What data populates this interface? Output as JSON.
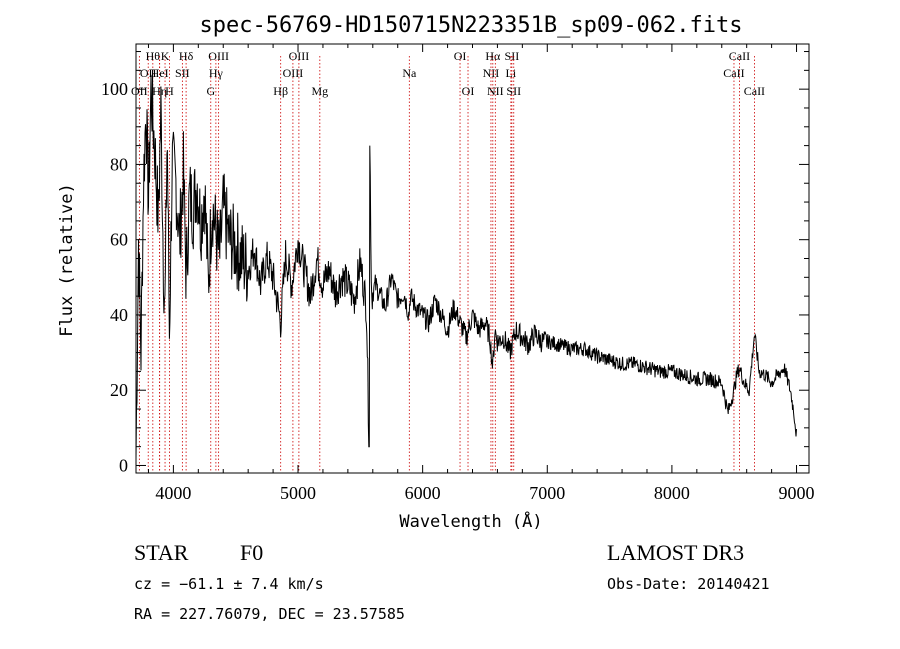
{
  "chart_data": {
    "type": "line",
    "title": "spec-56769-HD150715N223351B_sp09-062.fits",
    "xlabel": "Wavelength (Å)",
    "ylabel": "Flux (relative)",
    "xlim": [
      3700,
      9100
    ],
    "ylim": [
      -2,
      112
    ],
    "xticks": [
      4000,
      5000,
      6000,
      7000,
      8000,
      9000
    ],
    "yticks": [
      0,
      20,
      40,
      60,
      80,
      100
    ],
    "series": [
      {
        "name": "flux",
        "x": [
          3700,
          3720,
          3740,
          3760,
          3780,
          3800,
          3820,
          3850,
          3880,
          3900,
          3920,
          3933,
          3950,
          3968,
          3990,
          4020,
          4050,
          4080,
          4102,
          4130,
          4160,
          4190,
          4220,
          4250,
          4280,
          4310,
          4340,
          4370,
          4400,
          4450,
          4500,
          4550,
          4600,
          4650,
          4700,
          4750,
          4800,
          4861,
          4900,
          4950,
          5000,
          5050,
          5100,
          5150,
          5200,
          5250,
          5300,
          5350,
          5400,
          5450,
          5500,
          5550,
          5570,
          5577,
          5590,
          5620,
          5650,
          5700,
          5750,
          5800,
          5850,
          5890,
          5900,
          5950,
          6000,
          6050,
          6100,
          6150,
          6200,
          6250,
          6300,
          6350,
          6400,
          6450,
          6500,
          6540,
          6563,
          6580,
          6600,
          6650,
          6700,
          6750,
          6800,
          6850,
          6900,
          6950,
          7000,
          7100,
          7200,
          7300,
          7400,
          7500,
          7600,
          7700,
          7800,
          7900,
          8000,
          8100,
          8200,
          8300,
          8400,
          8450,
          8498,
          8520,
          8542,
          8580,
          8620,
          8662,
          8700,
          8750,
          8800,
          8850,
          8900,
          8950,
          8980,
          9000
        ],
        "y": [
          2,
          60,
          30,
          75,
          95,
          70,
          100,
          85,
          65,
          95,
          55,
          40,
          90,
          35,
          80,
          75,
          60,
          78,
          50,
          72,
          68,
          76,
          64,
          74,
          48,
          70,
          62,
          55,
          68,
          60,
          58,
          55,
          52,
          58,
          48,
          55,
          50,
          38,
          56,
          48,
          60,
          52,
          45,
          55,
          48,
          52,
          46,
          50,
          48,
          44,
          54,
          42,
          5,
          85,
          45,
          48,
          46,
          42,
          50,
          44,
          46,
          40,
          45,
          42,
          40,
          38,
          44,
          40,
          36,
          42,
          38,
          34,
          40,
          36,
          38,
          34,
          26,
          36,
          33,
          34,
          30,
          36,
          34,
          32,
          35,
          33,
          33,
          32,
          31,
          31,
          29,
          28,
          27,
          27,
          26,
          25,
          25,
          24,
          23,
          23,
          22,
          14,
          20,
          24,
          26,
          22,
          20,
          35,
          25,
          24,
          22,
          24,
          26,
          20,
          14,
          8
        ]
      }
    ],
    "lines": [
      {
        "wl": 3727,
        "row": 2,
        "label": "OII"
      },
      {
        "wl": 3798,
        "row": 1,
        "label": "OII"
      },
      {
        "wl": 3835,
        "row": 0,
        "label": "Hθ"
      },
      {
        "wl": 3889,
        "row": 2,
        "label": "Hη"
      },
      {
        "wl": 3890,
        "row": 1,
        "label": "HeI"
      },
      {
        "wl": 3933,
        "row": 0,
        "label": "K"
      },
      {
        "wl": 3968,
        "row": 2,
        "label": "H"
      },
      {
        "wl": 4072,
        "row": 1,
        "label": "SII"
      },
      {
        "wl": 4102,
        "row": 0,
        "label": "Hδ"
      },
      {
        "wl": 4300,
        "row": 2,
        "label": "G"
      },
      {
        "wl": 4341,
        "row": 1,
        "label": "Hγ"
      },
      {
        "wl": 4363,
        "row": 0,
        "label": "OIII"
      },
      {
        "wl": 4861,
        "row": 2,
        "label": "Hβ"
      },
      {
        "wl": 4959,
        "row": 1,
        "label": "OIII"
      },
      {
        "wl": 5007,
        "row": 0,
        "label": "OIII"
      },
      {
        "wl": 5175,
        "row": 2,
        "label": "Mg"
      },
      {
        "wl": 5893,
        "row": 1,
        "label": "Na"
      },
      {
        "wl": 6300,
        "row": 0,
        "label": "OI"
      },
      {
        "wl": 6364,
        "row": 2,
        "label": "OI"
      },
      {
        "wl": 6548,
        "row": 1,
        "label": "NII"
      },
      {
        "wl": 6563,
        "row": 0,
        "label": "Hα"
      },
      {
        "wl": 6583,
        "row": 2,
        "label": "NII"
      },
      {
        "wl": 6708,
        "row": 1,
        "label": "Li"
      },
      {
        "wl": 6716,
        "row": 0,
        "label": "SII"
      },
      {
        "wl": 6731,
        "row": 2,
        "label": "SII"
      },
      {
        "wl": 8498,
        "row": 1,
        "label": "CaII"
      },
      {
        "wl": 8542,
        "row": 0,
        "label": "CaII"
      },
      {
        "wl": 8662,
        "row": 2,
        "label": "CaII"
      }
    ],
    "line_color": "#cc0000"
  },
  "info": {
    "object_class": "STAR",
    "subclass": "F0",
    "survey": "LAMOST DR3",
    "redshift": "cz = −61.1 ± 7.4 km/s",
    "obs_date": "Obs-Date: 20140421",
    "coords": "RA = 227.76079, DEC =  23.57585"
  }
}
